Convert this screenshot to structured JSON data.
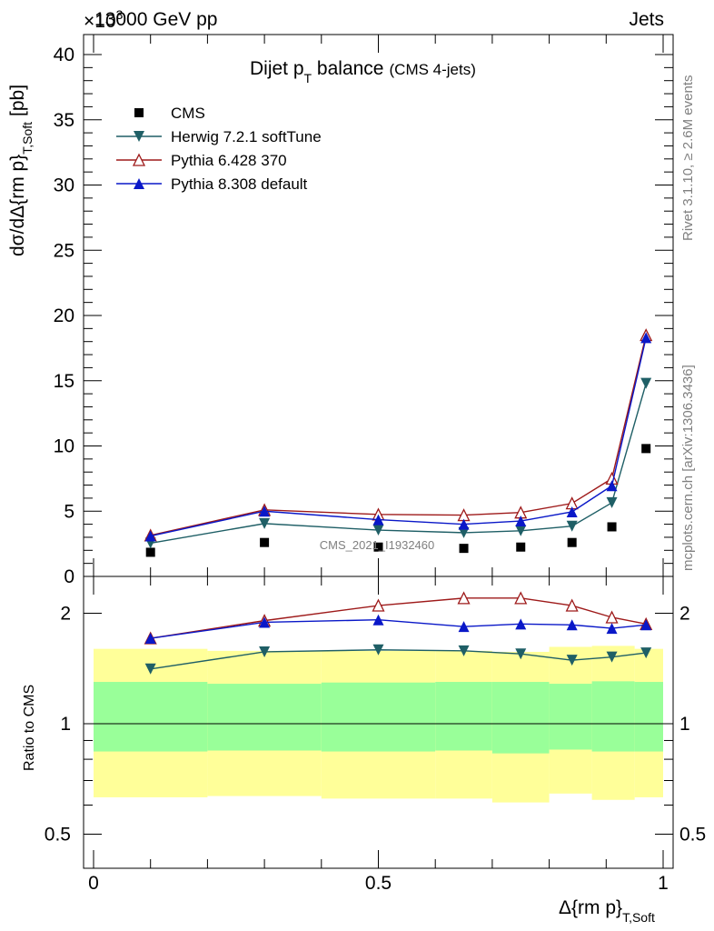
{
  "header": {
    "process": "13000 GeV pp",
    "category": "Jets",
    "exponent_label": "×10",
    "exponent_power": "3"
  },
  "plot": {
    "title_main": "Dijet p",
    "title_sub": "T",
    "title_tail": " balance",
    "title_note": "(CMS 4-jets)",
    "ylabel_main": "dσ/dΔ{rm p}",
    "ylabel_sub": "T,Soft",
    "ylabel_unit": "[pb]",
    "xlabel_main": "Δ{rm p}",
    "xlabel_sub": "T,Soft",
    "ratio_ylabel": "Ratio to CMS",
    "watermark": "CMS_2021_I1932460",
    "side_rivet": "Rivet 3.1.10, ≥ 2.6M events",
    "side_mcplots": "mcplots.cern.ch [arXiv:1306.3436]"
  },
  "chart_data": {
    "type": "scatter",
    "x": [
      0.1,
      0.3,
      0.5,
      0.65,
      0.75,
      0.84,
      0.91,
      0.97
    ],
    "ylim": [
      0,
      42
    ],
    "yticks": [
      "0",
      "5",
      "10",
      "15",
      "20",
      "25",
      "30",
      "35",
      "40"
    ],
    "xlim": [
      0,
      1
    ],
    "xticks": [
      "0",
      "0.5",
      "1"
    ],
    "legend_position": "top-left",
    "series": [
      {
        "name": "CMS",
        "marker": "square",
        "color": "#000000",
        "values": [
          1.85,
          2.6,
          2.25,
          2.15,
          2.25,
          2.6,
          3.8,
          9.8
        ]
      },
      {
        "name": "Herwig 7.2.1 softTune",
        "marker": "triangle-down",
        "color": "#1f5f66",
        "values": [
          2.55,
          4.05,
          3.55,
          3.35,
          3.5,
          3.85,
          5.65,
          14.8
        ]
      },
      {
        "name": "Pythia 6.428 370",
        "marker": "triangle-up-open",
        "color": "#9e1a1a",
        "values": [
          3.15,
          5.1,
          4.75,
          4.7,
          4.9,
          5.6,
          7.5,
          18.5
        ]
      },
      {
        "name": "Pythia 8.308 default",
        "marker": "triangle-up",
        "color": "#0a18c8",
        "values": [
          3.1,
          5.0,
          4.35,
          4.0,
          4.25,
          4.95,
          6.95,
          18.3
        ]
      }
    ],
    "ratio": {
      "ylabel": "Ratio to CMS",
      "yticks": [
        "0.5",
        "1",
        "2"
      ],
      "reference": 1.0,
      "band_edges": [
        0.0,
        0.2,
        0.4,
        0.6,
        0.7,
        0.8,
        0.875,
        0.95,
        1.0
      ],
      "band_inner": [
        [
          0.84,
          1.3
        ],
        [
          0.845,
          1.285
        ],
        [
          0.84,
          1.295
        ],
        [
          0.845,
          1.3
        ],
        [
          0.83,
          1.3
        ],
        [
          0.85,
          1.285
        ],
        [
          0.84,
          1.305
        ],
        [
          0.84,
          1.3
        ]
      ],
      "band_outer": [
        [
          0.63,
          1.6
        ],
        [
          0.635,
          1.58
        ],
        [
          0.625,
          1.58
        ],
        [
          0.625,
          1.58
        ],
        [
          0.61,
          1.57
        ],
        [
          0.645,
          1.62
        ],
        [
          0.62,
          1.63
        ],
        [
          0.63,
          1.6
        ]
      ],
      "series": [
        {
          "name": "Herwig 7.2.1 softTune",
          "values": [
            1.41,
            1.57,
            1.59,
            1.58,
            1.55,
            1.49,
            1.52,
            1.56
          ]
        },
        {
          "name": "Pythia 6.428 370",
          "values": [
            1.71,
            1.91,
            2.1,
            2.2,
            2.2,
            2.1,
            1.95,
            1.87
          ]
        },
        {
          "name": "Pythia 8.308 default",
          "values": [
            1.71,
            1.89,
            1.92,
            1.84,
            1.87,
            1.86,
            1.82,
            1.86
          ]
        }
      ]
    }
  }
}
